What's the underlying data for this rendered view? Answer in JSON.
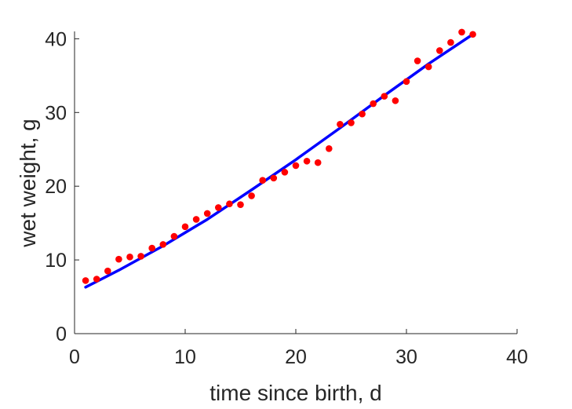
{
  "chart_data": {
    "type": "scatter",
    "xlabel": "time since birth, d",
    "ylabel": "wet weight, g",
    "xlim": [
      0,
      40
    ],
    "ylim": [
      0,
      41
    ],
    "xticks": [
      0,
      10,
      20,
      30,
      40
    ],
    "yticks": [
      0,
      10,
      20,
      30,
      40
    ],
    "grid": false,
    "series": [
      {
        "kind": "scatter",
        "color": "#ff0000",
        "x": [
          1,
          2,
          3,
          4,
          5,
          6,
          7,
          8,
          9,
          10,
          11,
          12,
          13,
          14,
          15,
          16,
          17,
          18,
          19,
          20,
          21,
          22,
          23,
          24,
          25,
          26,
          27,
          28,
          29,
          30,
          31,
          32,
          33,
          34,
          35,
          36
        ],
        "y": [
          7.2,
          7.4,
          8.5,
          10.1,
          10.4,
          10.5,
          11.6,
          12.1,
          13.2,
          14.5,
          15.5,
          16.3,
          17.1,
          17.6,
          17.5,
          18.7,
          20.8,
          21.1,
          21.9,
          22.8,
          23.4,
          23.2,
          25.1,
          28.4,
          28.6,
          29.8,
          31.2,
          32.2,
          31.6,
          34.2,
          37.0,
          36.2,
          38.4,
          39.5,
          40.9,
          40.6
        ]
      },
      {
        "kind": "line",
        "color": "#0000ff",
        "x": [
          1,
          4,
          8,
          12,
          16,
          20,
          24,
          28,
          32,
          36
        ],
        "y": [
          6.3,
          8.6,
          11.9,
          15.5,
          19.5,
          23.6,
          27.9,
          32.3,
          36.6,
          40.6
        ]
      }
    ]
  }
}
